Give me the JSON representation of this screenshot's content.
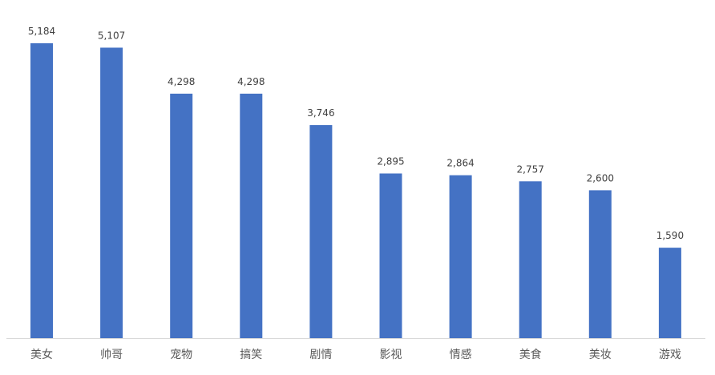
{
  "chart_data": {
    "type": "bar",
    "categories": [
      "美女",
      "帅哥",
      "宠物",
      "搞笑",
      "剧情",
      "影视",
      "情感",
      "美食",
      "美妆",
      "游戏"
    ],
    "values": [
      5184,
      5107,
      4298,
      4298,
      3746,
      2895,
      2864,
      2757,
      2600,
      1590
    ],
    "data_labels": [
      "5,184",
      "5,107",
      "4,298",
      "4,298",
      "3,746",
      "2,895",
      "2,864",
      "2,757",
      "2,600",
      "1,590"
    ],
    "title": "",
    "xlabel": "",
    "ylabel": "",
    "ylim": [
      0,
      5184
    ],
    "grid": false,
    "legend": "none",
    "bar_color": "#4472C4"
  }
}
